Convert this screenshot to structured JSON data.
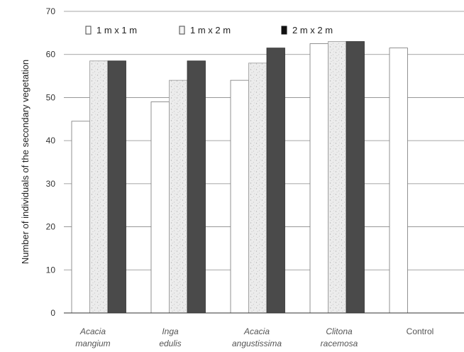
{
  "chart_data": {
    "type": "bar",
    "ylabel": "Number of individuals of the secondary vegetation",
    "xlabel": "",
    "ylim": [
      0,
      70
    ],
    "yticks": [
      0,
      10,
      20,
      30,
      40,
      50,
      60,
      70
    ],
    "grid": true,
    "legend_position": "top",
    "categories": [
      {
        "line1": "Acacia",
        "line2": "mangium",
        "italic": true
      },
      {
        "line1": "Inga",
        "line2": "edulis",
        "italic": true
      },
      {
        "line1": "Acacia",
        "line2": "angustissima",
        "italic": true
      },
      {
        "line1": "Clitona",
        "line2": "racemosa",
        "italic": true
      },
      {
        "line1": "Control",
        "line2": "",
        "italic": false
      }
    ],
    "series": [
      {
        "name": "1 m x 1 m",
        "color": "#ffffff",
        "values": [
          44.5,
          49,
          54,
          62.5,
          61.5
        ]
      },
      {
        "name": "1 m x 2 m",
        "color": "#e3e3e3",
        "values": [
          58.5,
          54,
          58,
          63,
          null
        ]
      },
      {
        "name": "2 m x 2 m",
        "color": "#4a4a4a",
        "values": [
          58.5,
          58.5,
          61.5,
          63,
          null
        ]
      }
    ]
  }
}
